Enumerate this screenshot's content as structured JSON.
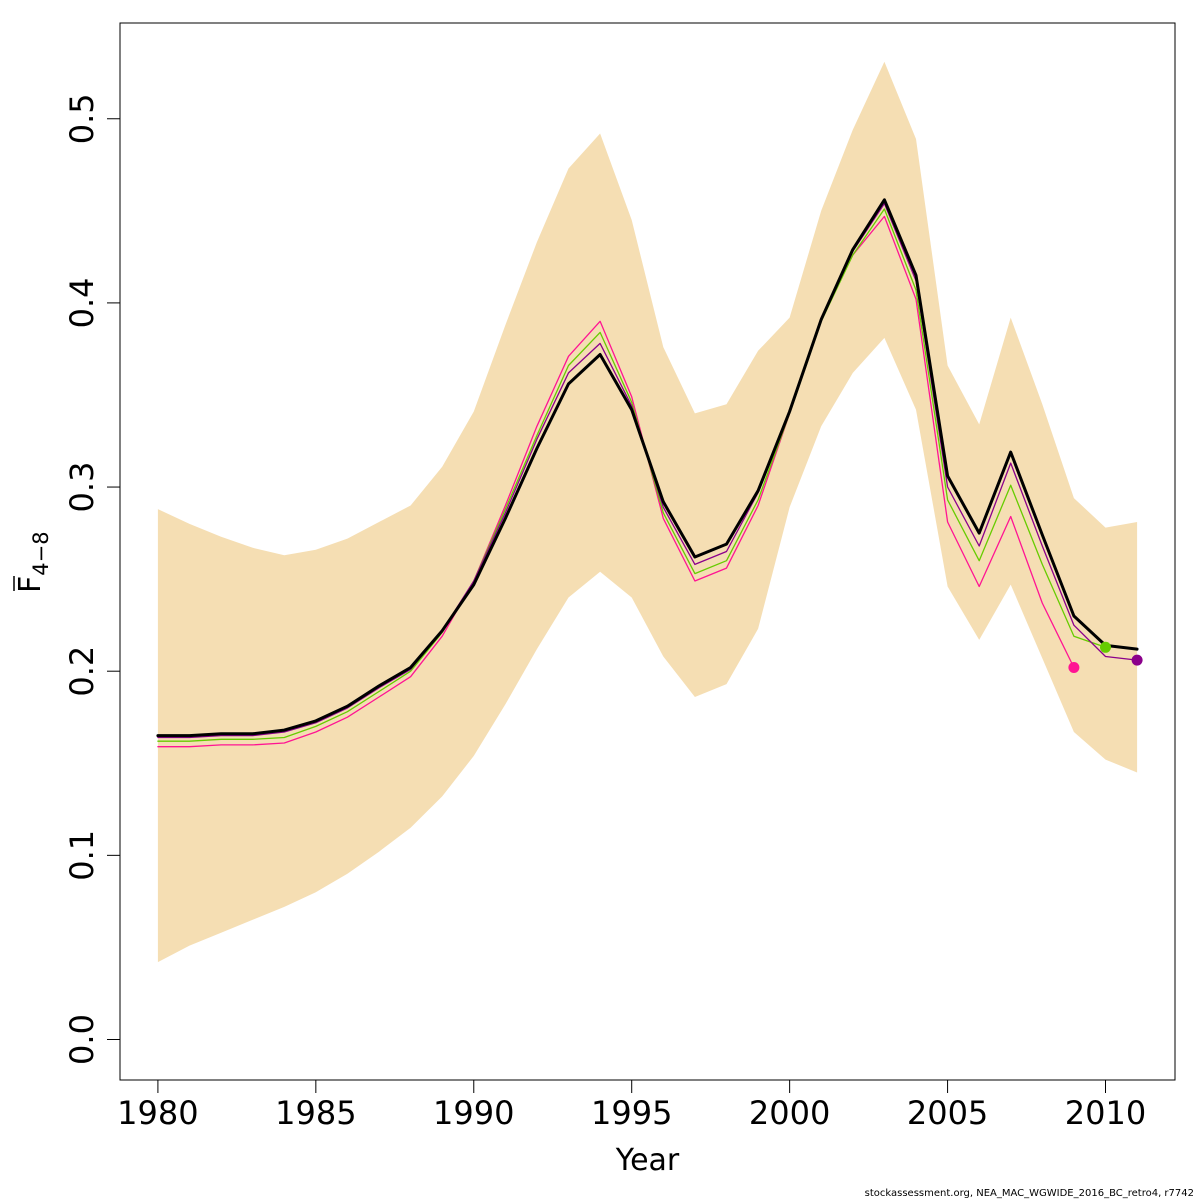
{
  "chart_data": {
    "type": "line",
    "xlabel": "Year",
    "ylabel_main": "F",
    "ylabel_sub": "4−8",
    "xlim": [
      1978.8,
      1979.8
    ],
    "x_ticks": [
      1980,
      1985,
      1990,
      1995,
      2000,
      2005,
      2010
    ],
    "y_ticks": [
      0.0,
      0.1,
      0.2,
      0.3,
      0.4,
      0.5
    ],
    "y_tick_labels": [
      "0.0",
      "0.1",
      "0.2",
      "0.3",
      "0.4",
      "0.5"
    ],
    "x_tick_labels": [
      "1980",
      "1985",
      "1990",
      "1995",
      "2000",
      "2005",
      "2010"
    ],
    "band_color": "#F5DEB3",
    "confidence_band": {
      "x": [
        1980,
        1981,
        1982,
        1983,
        1984,
        1985,
        1986,
        1987,
        1988,
        1989,
        1990,
        1991,
        1992,
        1993,
        1994,
        1995,
        1996,
        1997,
        1998,
        1999,
        2000,
        2001,
        2002,
        2003,
        2004,
        2005,
        2006,
        2007,
        2008,
        2009,
        2010,
        2011
      ],
      "upper": [
        0.288,
        0.28,
        0.273,
        0.267,
        0.263,
        0.266,
        0.272,
        0.281,
        0.29,
        0.311,
        0.341,
        0.388,
        0.433,
        0.473,
        0.492,
        0.445,
        0.376,
        0.34,
        0.345,
        0.374,
        0.392,
        0.45,
        0.494,
        0.531,
        0.489,
        0.366,
        0.334,
        0.392,
        0.345,
        0.294,
        0.278,
        0.281
      ],
      "lower": [
        0.042,
        0.051,
        0.058,
        0.065,
        0.072,
        0.08,
        0.09,
        0.102,
        0.115,
        0.132,
        0.154,
        0.182,
        0.212,
        0.24,
        0.254,
        0.24,
        0.208,
        0.186,
        0.193,
        0.223,
        0.289,
        0.333,
        0.362,
        0.381,
        0.342,
        0.246,
        0.217,
        0.247,
        0.207,
        0.167,
        0.152,
        0.145
      ]
    },
    "series": [
      {
        "color": "#FF1493",
        "width": 1.3,
        "x": [
          1980,
          1981,
          1982,
          1983,
          1984,
          1985,
          1986,
          1987,
          1988,
          1989,
          1990,
          1991,
          1992,
          1993,
          1994,
          1995,
          1996,
          1997,
          1998,
          1999,
          2000,
          2001,
          2002,
          2003,
          2004,
          2005,
          2006,
          2007,
          2008,
          2009
        ],
        "values": [
          0.159,
          0.159,
          0.16,
          0.16,
          0.161,
          0.167,
          0.175,
          0.186,
          0.197,
          0.219,
          0.249,
          0.29,
          0.333,
          0.371,
          0.39,
          0.349,
          0.283,
          0.249,
          0.256,
          0.29,
          0.34,
          0.392,
          0.426,
          0.447,
          0.402,
          0.281,
          0.246,
          0.284,
          0.237,
          0.202
        ],
        "end_marker": true
      },
      {
        "color": "#66CC00",
        "width": 1.3,
        "x": [
          1980,
          1981,
          1982,
          1983,
          1984,
          1985,
          1986,
          1987,
          1988,
          1989,
          1990,
          1991,
          1992,
          1993,
          1994,
          1995,
          1996,
          1997,
          1998,
          1999,
          2000,
          2001,
          2002,
          2003,
          2004,
          2005,
          2006,
          2007,
          2008,
          2009,
          2010
        ],
        "values": [
          0.162,
          0.162,
          0.163,
          0.163,
          0.164,
          0.17,
          0.178,
          0.189,
          0.2,
          0.221,
          0.249,
          0.288,
          0.328,
          0.366,
          0.384,
          0.346,
          0.286,
          0.253,
          0.26,
          0.293,
          0.34,
          0.39,
          0.426,
          0.451,
          0.407,
          0.293,
          0.26,
          0.301,
          0.258,
          0.219,
          0.213
        ],
        "end_marker": true
      },
      {
        "color": "#8B008B",
        "width": 1.3,
        "x": [
          1980,
          1981,
          1982,
          1983,
          1984,
          1985,
          1986,
          1987,
          1988,
          1989,
          1990,
          1991,
          1992,
          1993,
          1994,
          1995,
          1996,
          1997,
          1998,
          1999,
          2000,
          2001,
          2002,
          2003,
          2004,
          2005,
          2006,
          2007,
          2008,
          2009,
          2010,
          2011
        ],
        "values": [
          0.164,
          0.164,
          0.165,
          0.165,
          0.167,
          0.172,
          0.18,
          0.191,
          0.201,
          0.222,
          0.249,
          0.286,
          0.326,
          0.362,
          0.378,
          0.344,
          0.289,
          0.258,
          0.265,
          0.297,
          0.341,
          0.391,
          0.428,
          0.454,
          0.412,
          0.3,
          0.268,
          0.313,
          0.268,
          0.225,
          0.208,
          0.206
        ],
        "end_marker": true
      },
      {
        "color": "#000000",
        "width": 3,
        "x": [
          1980,
          1981,
          1982,
          1983,
          1984,
          1985,
          1986,
          1987,
          1988,
          1989,
          1990,
          1991,
          1992,
          1993,
          1994,
          1995,
          1996,
          1997,
          1998,
          1999,
          2000,
          2001,
          2002,
          2003,
          2004,
          2005,
          2006,
          2007,
          2008,
          2009,
          2010,
          2011
        ],
        "values": [
          0.165,
          0.165,
          0.166,
          0.166,
          0.168,
          0.173,
          0.181,
          0.192,
          0.202,
          0.222,
          0.247,
          0.283,
          0.321,
          0.356,
          0.372,
          0.342,
          0.292,
          0.262,
          0.269,
          0.298,
          0.341,
          0.391,
          0.429,
          0.456,
          0.415,
          0.306,
          0.275,
          0.319,
          0.274,
          0.23,
          0.214,
          0.212
        ],
        "end_marker": false
      }
    ]
  },
  "footer_text": "stockassessment.org, NEA_MAC_WGWIDE_2016_BC_retro4, r7742"
}
